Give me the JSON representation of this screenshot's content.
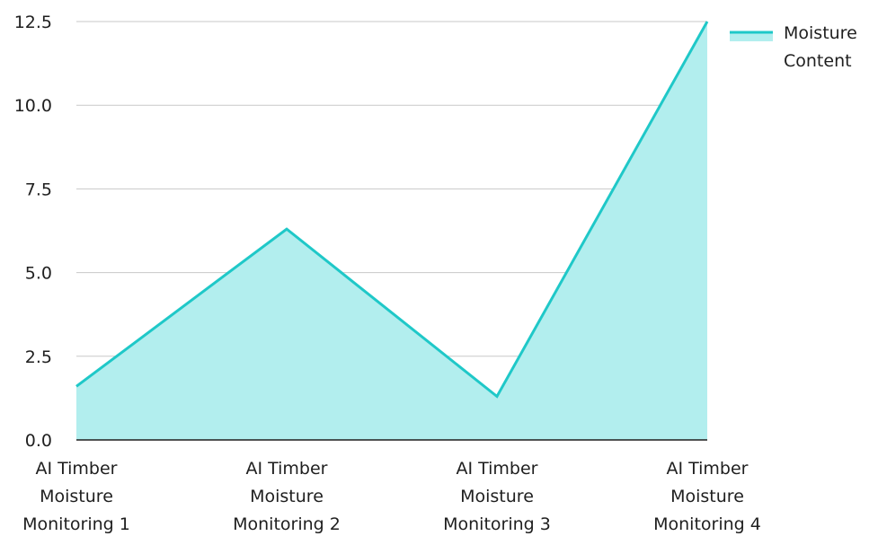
{
  "chart_data": {
    "type": "area",
    "categories": [
      "AI Timber Moisture Monitoring 1",
      "AI Timber Moisture Monitoring 2",
      "AI Timber Moisture Monitoring 3",
      "AI Timber Moisture Monitoring 4"
    ],
    "series": [
      {
        "name": "Moisture Content",
        "values": [
          1.6,
          6.3,
          1.3,
          12.5
        ],
        "line_color": "#1fc8c8",
        "fill_color": "#b2eeee"
      }
    ],
    "title": "",
    "xlabel": "",
    "ylabel": "",
    "ylim": [
      0,
      12.5
    ],
    "yticks": [
      "0.0",
      "2.5",
      "5.0",
      "7.5",
      "10.0",
      "12.5"
    ],
    "grid": true,
    "legend_position": "top-right"
  }
}
